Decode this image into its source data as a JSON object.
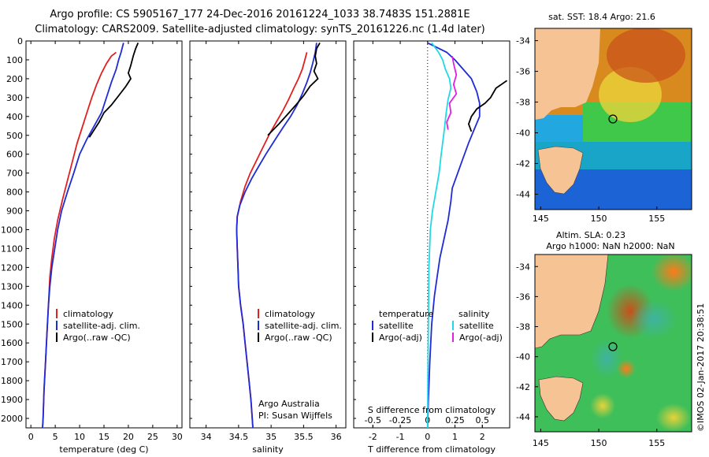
{
  "header": {
    "line1": "Argo profile: CS 5905167_177 24-Dec-2016 20161224_1033 38.7483S 151.2881E",
    "line2": "Climatology: CARS2009. Satellite-adjusted climatology: synTS_20161226.nc (1.4d later)"
  },
  "colors": {
    "climatology": "#e02020",
    "satellite": "#1f2bd6",
    "argo": "#000000",
    "argo_salinity_diff": "#e020e0",
    "satellite_salinity_diff": "#22d8e8",
    "land": "#f6c394"
  },
  "panels": {
    "temperature": {
      "xlabel": "temperature (deg C)"
    },
    "salinity": {
      "xlabel": "salinity",
      "credit1": "Argo Australia",
      "credit2": "PI: Susan Wijffels"
    },
    "difference": {
      "xlabel": "T difference from climatology",
      "top_axis_label": "S difference from climatology",
      "legend_temperature_title": "temperature",
      "legend_salinity_title": "salinity"
    }
  },
  "legend": {
    "climatology": "climatology",
    "satellite_adj": "satellite-adj. clim.",
    "argo_raw": "Argo(..raw -QC)",
    "satellite": "satellite",
    "argo_adj": "Argo(-adj)"
  },
  "maps": {
    "sst_title": "sat. SST: 18.4 Argo: 21.6",
    "sla_title1": "Altim. SLA: 0.23",
    "sla_title2": "Argo h1000: NaN h2000: NaN",
    "lat_ticks": [
      "-34",
      "-36",
      "-38",
      "-40",
      "-42",
      "-44"
    ],
    "lon_ticks": [
      "145",
      "150",
      "155"
    ],
    "float_position": {
      "lon": 151.29,
      "lat": -38.75
    }
  },
  "stamp": "©IMOS 02-Jan-2017 20:38:51",
  "chart_data": [
    {
      "type": "line",
      "name": "temperature",
      "xlabel": "temperature (deg C)",
      "ylabel": "",
      "xlim": [
        -1,
        31
      ],
      "ylim": [
        2050,
        0
      ],
      "xticks": [
        "0",
        "5",
        "10",
        "15",
        "20",
        "25",
        "30"
      ],
      "yticks": [
        "0",
        "100",
        "200",
        "300",
        "400",
        "500",
        "600",
        "700",
        "800",
        "900",
        "1000",
        "1100",
        "1200",
        "1300",
        "1400",
        "1500",
        "1600",
        "1700",
        "1800",
        "1900",
        "2000"
      ],
      "series": [
        {
          "name": "climatology",
          "color": "#e02020",
          "points": [
            [
              17.5,
              60
            ],
            [
              16.5,
              80
            ],
            [
              15.5,
              120
            ],
            [
              14.5,
              170
            ],
            [
              13.5,
              230
            ],
            [
              12.5,
              300
            ],
            [
              11.5,
              380
            ],
            [
              10.5,
              460
            ],
            [
              9.5,
              540
            ],
            [
              8.5,
              640
            ],
            [
              7.5,
              740
            ],
            [
              6.5,
              840
            ],
            [
              5.5,
              950
            ],
            [
              4.8,
              1050
            ],
            [
              4.3,
              1150
            ],
            [
              3.9,
              1250
            ],
            [
              3.6,
              1400
            ],
            [
              3.3,
              1550
            ],
            [
              3.0,
              1700
            ],
            [
              2.7,
              1850
            ],
            [
              2.5,
              2000
            ],
            [
              2.4,
              2050
            ]
          ]
        },
        {
          "name": "satellite-adj. clim.",
          "color": "#1f2bd6",
          "points": [
            [
              19.0,
              10
            ],
            [
              18.5,
              60
            ],
            [
              18.0,
              100
            ],
            [
              17.5,
              150
            ],
            [
              16.5,
              220
            ],
            [
              15.5,
              300
            ],
            [
              14.5,
              380
            ],
            [
              13.0,
              450
            ],
            [
              11.5,
              520
            ],
            [
              10.0,
              600
            ],
            [
              8.8,
              700
            ],
            [
              7.5,
              800
            ],
            [
              6.3,
              900
            ],
            [
              5.5,
              1000
            ],
            [
              4.9,
              1100
            ],
            [
              4.3,
              1200
            ],
            [
              3.9,
              1300
            ],
            [
              3.6,
              1400
            ],
            [
              3.3,
              1550
            ],
            [
              3.0,
              1700
            ],
            [
              2.7,
              1850
            ],
            [
              2.5,
              2000
            ],
            [
              2.4,
              2050
            ]
          ]
        },
        {
          "name": "Argo(..raw -QC)",
          "color": "#000000",
          "points": [
            [
              22.0,
              10
            ],
            [
              21.5,
              40
            ],
            [
              21.0,
              80
            ],
            [
              20.5,
              130
            ],
            [
              20.0,
              170
            ],
            [
              20.5,
              200
            ],
            [
              19.5,
              240
            ],
            [
              18.0,
              290
            ],
            [
              16.5,
              340
            ],
            [
              15.0,
              380
            ],
            [
              14.0,
              430
            ],
            [
              13.0,
              470
            ],
            [
              12.0,
              510
            ]
          ]
        }
      ]
    },
    {
      "type": "line",
      "name": "salinity",
      "xlabel": "salinity",
      "xlim": [
        33.75,
        36.15
      ],
      "ylim": [
        2050,
        0
      ],
      "xticks": [
        "34",
        "34.5",
        "35",
        "35.5",
        "36"
      ],
      "series": [
        {
          "name": "climatology",
          "color": "#e02020",
          "points": [
            [
              35.55,
              60
            ],
            [
              35.52,
              100
            ],
            [
              35.48,
              150
            ],
            [
              35.42,
              200
            ],
            [
              35.35,
              250
            ],
            [
              35.27,
              310
            ],
            [
              35.18,
              370
            ],
            [
              35.08,
              430
            ],
            [
              34.98,
              490
            ],
            [
              34.88,
              560
            ],
            [
              34.78,
              630
            ],
            [
              34.68,
              700
            ],
            [
              34.6,
              770
            ],
            [
              34.53,
              850
            ],
            [
              34.48,
              930
            ],
            [
              34.47,
              1000
            ],
            [
              34.48,
              1100
            ],
            [
              34.49,
              1200
            ],
            [
              34.5,
              1300
            ],
            [
              34.53,
              1400
            ],
            [
              34.57,
              1500
            ],
            [
              34.6,
              1600
            ],
            [
              34.63,
              1700
            ],
            [
              34.66,
              1800
            ],
            [
              34.69,
              1900
            ],
            [
              34.71,
              2000
            ],
            [
              34.72,
              2050
            ]
          ]
        },
        {
          "name": "satellite-adj. clim.",
          "color": "#1f2bd6",
          "points": [
            [
              35.7,
              10
            ],
            [
              35.68,
              60
            ],
            [
              35.64,
              120
            ],
            [
              35.6,
              170
            ],
            [
              35.55,
              220
            ],
            [
              35.48,
              280
            ],
            [
              35.4,
              340
            ],
            [
              35.3,
              400
            ],
            [
              35.18,
              460
            ],
            [
              35.05,
              530
            ],
            [
              34.92,
              600
            ],
            [
              34.8,
              670
            ],
            [
              34.7,
              730
            ],
            [
              34.6,
              800
            ],
            [
              34.52,
              870
            ],
            [
              34.48,
              930
            ],
            [
              34.47,
              1000
            ],
            [
              34.48,
              1100
            ],
            [
              34.49,
              1200
            ],
            [
              34.5,
              1300
            ],
            [
              34.53,
              1400
            ],
            [
              34.57,
              1500
            ],
            [
              34.6,
              1600
            ],
            [
              34.63,
              1700
            ],
            [
              34.66,
              1800
            ],
            [
              34.69,
              1900
            ],
            [
              34.71,
              2000
            ],
            [
              34.72,
              2050
            ]
          ]
        },
        {
          "name": "Argo(..raw -QC)",
          "color": "#000000",
          "points": [
            [
              35.75,
              10
            ],
            [
              35.7,
              40
            ],
            [
              35.68,
              80
            ],
            [
              35.7,
              120
            ],
            [
              35.66,
              160
            ],
            [
              35.72,
              200
            ],
            [
              35.6,
              240
            ],
            [
              35.5,
              290
            ],
            [
              35.38,
              340
            ],
            [
              35.25,
              390
            ],
            [
              35.12,
              440
            ],
            [
              34.95,
              500
            ]
          ]
        }
      ]
    },
    {
      "type": "line",
      "name": "difference",
      "xlabel": "T difference from climatology",
      "xlim": [
        -2.7,
        3.0
      ],
      "xticks": [
        "-2",
        "-1",
        "0",
        "1",
        "2"
      ],
      "top_xticks": [
        "-0.5",
        "-0.25",
        "0",
        "0.25",
        "0.5"
      ],
      "ylim": [
        2050,
        0
      ],
      "series": [
        {
          "name": "temperature satellite",
          "color": "#1f2bd6",
          "points": [
            [
              0.0,
              10
            ],
            [
              0.7,
              60
            ],
            [
              1.0,
              100
            ],
            [
              1.3,
              150
            ],
            [
              1.6,
              200
            ],
            [
              1.8,
              270
            ],
            [
              1.9,
              330
            ],
            [
              1.9,
              400
            ],
            [
              1.7,
              470
            ],
            [
              1.5,
              540
            ],
            [
              1.3,
              620
            ],
            [
              1.1,
              700
            ],
            [
              0.9,
              780
            ],
            [
              0.85,
              850
            ],
            [
              0.75,
              950
            ],
            [
              0.6,
              1050
            ],
            [
              0.45,
              1150
            ],
            [
              0.35,
              1250
            ],
            [
              0.25,
              1350
            ],
            [
              0.15,
              1500
            ],
            [
              0.08,
              1700
            ],
            [
              0.03,
              1900
            ],
            [
              0.0,
              2050
            ]
          ]
        },
        {
          "name": "temperature Argo(-adj)",
          "color": "#000000",
          "points": [
            [
              2.9,
              210
            ],
            [
              2.5,
              250
            ],
            [
              2.3,
              300
            ],
            [
              2.1,
              330
            ],
            [
              1.8,
              360
            ],
            [
              1.6,
              400
            ],
            [
              1.5,
              440
            ],
            [
              1.6,
              480
            ]
          ]
        },
        {
          "name": "salinity satellite",
          "color": "#22d8e8",
          "points": [
            [
              0.15,
              10
            ],
            [
              0.4,
              60
            ],
            [
              0.55,
              100
            ],
            [
              0.65,
              150
            ],
            [
              0.8,
              200
            ],
            [
              0.85,
              250
            ],
            [
              0.75,
              310
            ],
            [
              0.68,
              380
            ],
            [
              0.62,
              460
            ],
            [
              0.55,
              540
            ],
            [
              0.48,
              620
            ],
            [
              0.42,
              700
            ],
            [
              0.3,
              800
            ],
            [
              0.18,
              900
            ],
            [
              0.1,
              1000
            ],
            [
              0.05,
              1200
            ],
            [
              0.03,
              1500
            ],
            [
              0.01,
              1800
            ],
            [
              0.0,
              2050
            ]
          ]
        },
        {
          "name": "salinity Argo(-adj)",
          "color": "#e020e0",
          "points": [
            [
              0.9,
              80
            ],
            [
              0.95,
              120
            ],
            [
              1.05,
              180
            ],
            [
              0.95,
              230
            ],
            [
              1.05,
              280
            ],
            [
              0.8,
              330
            ],
            [
              0.85,
              380
            ],
            [
              0.7,
              430
            ],
            [
              0.75,
              470
            ]
          ]
        }
      ]
    }
  ]
}
